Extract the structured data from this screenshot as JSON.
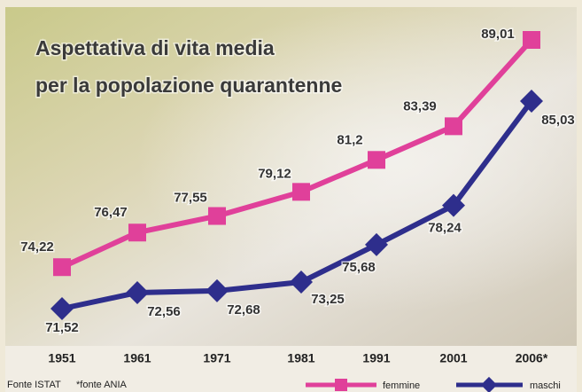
{
  "chart_data": {
    "type": "line",
    "title": [
      "Aspettativa di vita media",
      "per la popolazione quarantenne"
    ],
    "categories": [
      "1951",
      "1961",
      "1971",
      "1981",
      "1991",
      "2001",
      "2006*"
    ],
    "series": [
      {
        "name": "femmine",
        "color": "#e0409a",
        "marker": "square",
        "values": [
          74.22,
          76.47,
          77.55,
          79.12,
          81.2,
          83.39,
          89.01
        ],
        "value_labels": [
          "74,22",
          "76,47",
          "77,55",
          "79,12",
          "81,2",
          "83,39",
          "89,01"
        ]
      },
      {
        "name": "maschi",
        "color": "#2e2e8c",
        "marker": "diamond",
        "values": [
          71.52,
          72.56,
          72.68,
          73.25,
          75.68,
          78.24,
          85.03
        ],
        "value_labels": [
          "71,52",
          "72,56",
          "72,68",
          "73,25",
          "75,68",
          "78,24",
          "85,03"
        ]
      }
    ],
    "source": "Fonte ISTAT",
    "note": "*fonte ANIA"
  }
}
